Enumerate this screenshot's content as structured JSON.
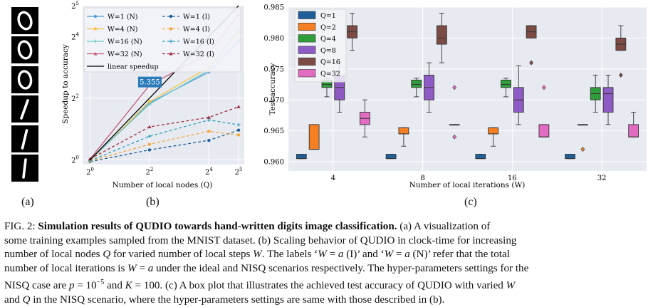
{
  "digits": [
    "0",
    "0",
    "0",
    "1",
    "1",
    "1"
  ],
  "panel_labels": {
    "a": "(a)",
    "b": "(b)",
    "c": "(c)"
  },
  "colors": {
    "axes_bg": "#e8eaf2",
    "grid": "#ffffff"
  },
  "chart_data": [
    {
      "type": "line",
      "panel": "b",
      "xlabel": "Number of local nodes (Q)",
      "ylabel": "Speedup to accuracy",
      "xscale": "log2",
      "yscale": "log2",
      "xlim": [
        1,
        32
      ],
      "xticks": [
        1,
        4,
        16,
        32
      ],
      "xticklabels": [
        {
          "base": "2",
          "exp": "0"
        },
        {
          "base": "2",
          "exp": "2"
        },
        {
          "base": "2",
          "exp": "4"
        },
        {
          "base": "2",
          "exp": "5"
        }
      ],
      "ylim": [
        0.9,
        32
      ],
      "yticks": [
        1,
        4,
        16,
        32
      ],
      "yticklabels": [
        {
          "base": "2",
          "exp": "0"
        },
        {
          "base": "2",
          "exp": "2"
        },
        {
          "base": "2",
          "exp": "4"
        },
        {
          "base": "2",
          "exp": "5"
        }
      ],
      "x": [
        1,
        4,
        16,
        32
      ],
      "grid": true,
      "legend_position": "top",
      "annotation": {
        "text": "5.355",
        "x": 4,
        "y": 5.355
      },
      "series": [
        {
          "name": "W=1 (N)",
          "color": "#4f9fd8",
          "style": "solid",
          "marker": "circle",
          "values": [
            1.0,
            3.6,
            7.2,
            14.5
          ]
        },
        {
          "name": "W=1 (I)",
          "color": "#1f5f99",
          "style": "dashed",
          "marker": "circle",
          "values": [
            0.96,
            1.25,
            1.55,
            1.95
          ]
        },
        {
          "name": "W=4 (N)",
          "color": "#f5c342",
          "style": "solid",
          "marker": "circle",
          "values": [
            0.98,
            3.7,
            8.0,
            17.5
          ]
        },
        {
          "name": "W=4 (I)",
          "color": "#f2a93b",
          "style": "dashed",
          "marker": "circle",
          "values": [
            0.97,
            1.42,
            1.9,
            1.75
          ]
        },
        {
          "name": "W=16 (N)",
          "color": "#6cc7c9",
          "style": "solid",
          "marker": "+",
          "values": [
            1.0,
            3.5,
            7.5,
            18.5
          ]
        },
        {
          "name": "W=16 (I)",
          "color": "#2fa3bb",
          "style": "dashed",
          "marker": "+",
          "values": [
            0.98,
            1.7,
            2.45,
            2.2
          ]
        },
        {
          "name": "W=32 (N)",
          "color": "#c35c7a",
          "style": "solid",
          "marker": "triangle",
          "values": [
            1.02,
            5.355,
            11.0,
            26.0
          ]
        },
        {
          "name": "W=32 (I)",
          "color": "#9b2c3e",
          "style": "dashed",
          "marker": "triangle",
          "values": [
            1.02,
            2.1,
            2.6,
            3.3
          ]
        },
        {
          "name": "linear speedup",
          "color": "#000000",
          "style": "solid",
          "marker": "none",
          "values": [
            1,
            4,
            16,
            32
          ]
        }
      ]
    },
    {
      "type": "box",
      "panel": "c",
      "xlabel": "Number of local iterations (W)",
      "ylabel": "Test accuracy",
      "categories": [
        "4",
        "8",
        "16",
        "32"
      ],
      "ylim": [
        0.9585,
        0.985
      ],
      "yticks": [
        0.96,
        0.965,
        0.97,
        0.975,
        0.98,
        0.985
      ],
      "yticklabels": [
        "0.960",
        "0.965",
        "0.970",
        "0.975",
        "0.980",
        "0.985"
      ],
      "grid": true,
      "legend_position": "top-left",
      "series": [
        {
          "name": "Q=1",
          "color": "#1f5f99",
          "boxes": [
            {
              "q1": 0.9605,
              "median": 0.9605,
              "q3": 0.9612,
              "wlo": 0.9605,
              "whi": 0.9612,
              "outliers": []
            },
            {
              "q1": 0.9605,
              "median": 0.9605,
              "q3": 0.9612,
              "wlo": 0.9605,
              "whi": 0.9612,
              "outliers": []
            },
            {
              "q1": 0.9605,
              "median": 0.9605,
              "q3": 0.9612,
              "wlo": 0.9605,
              "whi": 0.9612,
              "outliers": []
            },
            {
              "q1": 0.9605,
              "median": 0.9605,
              "q3": 0.9612,
              "wlo": 0.9605,
              "whi": 0.9612,
              "outliers": []
            }
          ]
        },
        {
          "name": "Q=2",
          "color": "#f57f22",
          "boxes": [
            {
              "q1": 0.962,
              "median": 0.962,
              "q3": 0.966,
              "wlo": 0.962,
              "whi": 0.966,
              "outliers": []
            },
            {
              "q1": 0.9645,
              "median": 0.9645,
              "q3": 0.9655,
              "wlo": 0.9625,
              "whi": 0.9655,
              "outliers": []
            },
            {
              "q1": 0.9645,
              "median": 0.9645,
              "q3": 0.9655,
              "wlo": 0.9625,
              "whi": 0.9655,
              "outliers": []
            },
            {
              "q1": 0.966,
              "median": 0.966,
              "q3": 0.966,
              "wlo": 0.966,
              "whi": 0.966,
              "outliers": [
                0.962
              ]
            }
          ]
        },
        {
          "name": "Q=4",
          "color": "#2f9e3a",
          "boxes": [
            {
              "q1": 0.972,
              "median": 0.9725,
              "q3": 0.9732,
              "wlo": 0.9705,
              "whi": 0.9735,
              "outliers": []
            },
            {
              "q1": 0.972,
              "median": 0.9725,
              "q3": 0.9732,
              "wlo": 0.9705,
              "whi": 0.9735,
              "outliers": []
            },
            {
              "q1": 0.972,
              "median": 0.9725,
              "q3": 0.9732,
              "wlo": 0.9705,
              "whi": 0.9735,
              "outliers": []
            },
            {
              "q1": 0.97,
              "median": 0.971,
              "q3": 0.972,
              "wlo": 0.968,
              "whi": 0.974,
              "outliers": []
            }
          ]
        },
        {
          "name": "Q=8",
          "color": "#8e5bc4",
          "boxes": [
            {
              "q1": 0.97,
              "median": 0.972,
              "q3": 0.974,
              "wlo": 0.968,
              "whi": 0.976,
              "outliers": []
            },
            {
              "q1": 0.97,
              "median": 0.972,
              "q3": 0.974,
              "wlo": 0.968,
              "whi": 0.976,
              "outliers": []
            },
            {
              "q1": 0.968,
              "median": 0.97,
              "q3": 0.972,
              "wlo": 0.966,
              "whi": 0.9755,
              "outliers": []
            },
            {
              "q1": 0.968,
              "median": 0.971,
              "q3": 0.972,
              "wlo": 0.966,
              "whi": 0.974,
              "outliers": []
            }
          ]
        },
        {
          "name": "Q=16",
          "color": "#7c4b45",
          "boxes": [
            {
              "q1": 0.98,
              "median": 0.981,
              "q3": 0.982,
              "wlo": 0.978,
              "whi": 0.984,
              "outliers": []
            },
            {
              "q1": 0.979,
              "median": 0.98,
              "q3": 0.982,
              "wlo": 0.976,
              "whi": 0.984,
              "outliers": []
            },
            {
              "q1": 0.98,
              "median": 0.981,
              "q3": 0.982,
              "wlo": 0.98,
              "whi": 0.982,
              "outliers": [
                0.976
              ]
            },
            {
              "q1": 0.978,
              "median": 0.979,
              "q3": 0.98,
              "wlo": 0.978,
              "whi": 0.982,
              "outliers": [
                0.974
              ]
            }
          ]
        },
        {
          "name": "Q=32",
          "color": "#e26cc1",
          "boxes": [
            {
              "q1": 0.966,
              "median": 0.967,
              "q3": 0.968,
              "wlo": 0.964,
              "whi": 0.97,
              "outliers": []
            },
            {
              "q1": 0.966,
              "median": 0.966,
              "q3": 0.966,
              "wlo": 0.966,
              "whi": 0.966,
              "outliers": [
                0.972,
                0.964
              ]
            },
            {
              "q1": 0.964,
              "median": 0.964,
              "q3": 0.966,
              "wlo": 0.964,
              "whi": 0.966,
              "outliers": [
                0.972
              ]
            },
            {
              "q1": 0.964,
              "median": 0.964,
              "q3": 0.966,
              "wlo": 0.964,
              "whi": 0.968,
              "outliers": []
            }
          ]
        }
      ]
    }
  ],
  "caption": {
    "lead": "FIG. 2: ",
    "bold": "Simulation results of QUDIO towards hand-written digits image classification.",
    "l1_rest": " (a) A visualization of",
    "l2": "some training examples sampled from the MNIST dataset. (b) Scaling behavior of QUDIO in clock-time for increasing",
    "l3_a": "number of local nodes ",
    "l3_q": "Q",
    "l3_b": " for varied number of local steps ",
    "l3_w": "W",
    "l3_c": ". The labels ‘",
    "l3_w2": "W",
    "l3_d": " = ",
    "l3_a2": "a",
    "l3_e": " (I)’ and ‘",
    "l3_w3": "W",
    "l3_f": " = ",
    "l3_a3": "a",
    "l3_g": " (N)’ refer that the total",
    "l4_a": "number of local iterations is ",
    "l4_w": "W",
    "l4_b": " = ",
    "l4_av": "a",
    "l4_c": " under the ideal and NISQ scenarios respectively. The hyper-parameters settings for the",
    "l5_a": "NISQ case are ",
    "l5_p": "p",
    "l5_b": " = 10",
    "l5_exp": "−5",
    "l5_c": " and ",
    "l5_k": "K",
    "l5_d": " = 100. (c) A box plot that illustrates the achieved test accuracy of QUDIO with varied ",
    "l5_w": "W",
    "l6_a": "and ",
    "l6_q": "Q",
    "l6_b": " in the NISQ scenario, where the hyper-parameters settings are same with those described in (b)."
  }
}
